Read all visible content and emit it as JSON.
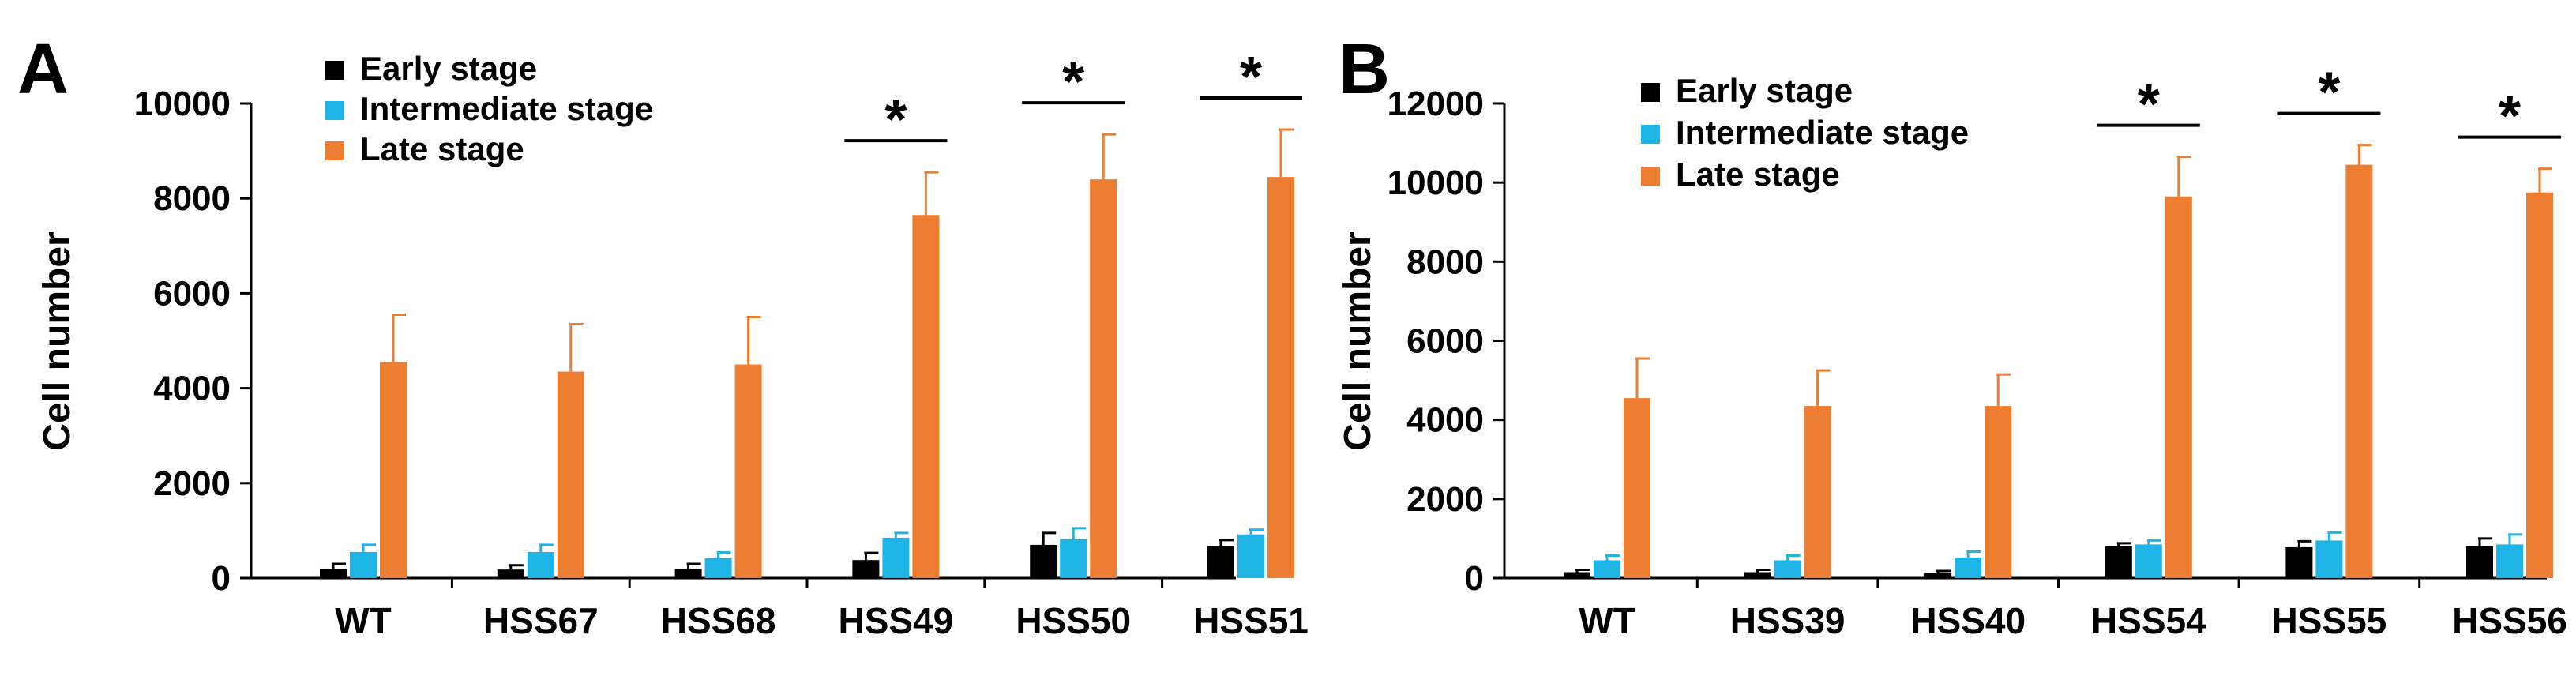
{
  "colors": {
    "early": "#000000",
    "intermediate": "#1EB4E6",
    "late": "#ED7D31",
    "axis": "#000000"
  },
  "chart_data": [
    {
      "panel_label": "A",
      "type": "bar",
      "ylabel": "Cell number",
      "ylim": [
        0,
        10000
      ],
      "yticks": [
        "0",
        "2000",
        "4000",
        "6000",
        "8000",
        "10000"
      ],
      "yticks_values": [
        0,
        2000,
        4000,
        6000,
        8000,
        10000
      ],
      "categories": [
        "WT",
        "HSS67",
        "HSS68",
        "HSS49",
        "HSS50",
        "HSS51"
      ],
      "legend_position": "top-left",
      "series": [
        {
          "name": "Early stage",
          "color_key": "early",
          "values": [
            200,
            180,
            200,
            380,
            700,
            680
          ],
          "errors": [
            100,
            90,
            100,
            150,
            250,
            120
          ]
        },
        {
          "name": "Intermediate stage",
          "color_key": "intermediate",
          "values": [
            550,
            550,
            420,
            850,
            820,
            920
          ],
          "errors": [
            150,
            150,
            120,
            100,
            230,
            100
          ]
        },
        {
          "name": "Late stage",
          "color_key": "late",
          "values": [
            4550,
            4350,
            4500,
            7650,
            8400,
            8450
          ],
          "errors": [
            1000,
            1000,
            1000,
            900,
            950,
            1000
          ]
        }
      ],
      "significance": [
        {
          "category_index": 3,
          "symbol": "*"
        },
        {
          "category_index": 4,
          "symbol": "*"
        },
        {
          "category_index": 5,
          "symbol": "*"
        }
      ]
    },
    {
      "panel_label": "B",
      "type": "bar",
      "ylabel": "Cell number",
      "ylim": [
        0,
        12000
      ],
      "yticks": [
        "0",
        "2000",
        "4000",
        "6000",
        "8000",
        "10000",
        "12000"
      ],
      "yticks_values": [
        0,
        2000,
        4000,
        6000,
        8000,
        10000,
        12000
      ],
      "categories": [
        "WT",
        "HSS39",
        "HSS40",
        "HSS54",
        "HSS55",
        "HSS56"
      ],
      "legend_position": "top-left",
      "series": [
        {
          "name": "Early stage",
          "color_key": "early",
          "values": [
            150,
            150,
            120,
            800,
            780,
            800
          ],
          "errors": [
            60,
            60,
            60,
            80,
            150,
            200
          ]
        },
        {
          "name": "Intermediate stage",
          "color_key": "intermediate",
          "values": [
            450,
            450,
            520,
            850,
            950,
            850
          ],
          "errors": [
            120,
            120,
            150,
            100,
            200,
            250
          ]
        },
        {
          "name": "Late stage",
          "color_key": "late",
          "values": [
            4550,
            4350,
            4350,
            9650,
            10450,
            9750
          ],
          "errors": [
            1000,
            900,
            800,
            1000,
            500,
            600
          ]
        }
      ],
      "significance": [
        {
          "category_index": 3,
          "symbol": "*"
        },
        {
          "category_index": 4,
          "symbol": "*"
        },
        {
          "category_index": 5,
          "symbol": "*"
        }
      ]
    }
  ]
}
